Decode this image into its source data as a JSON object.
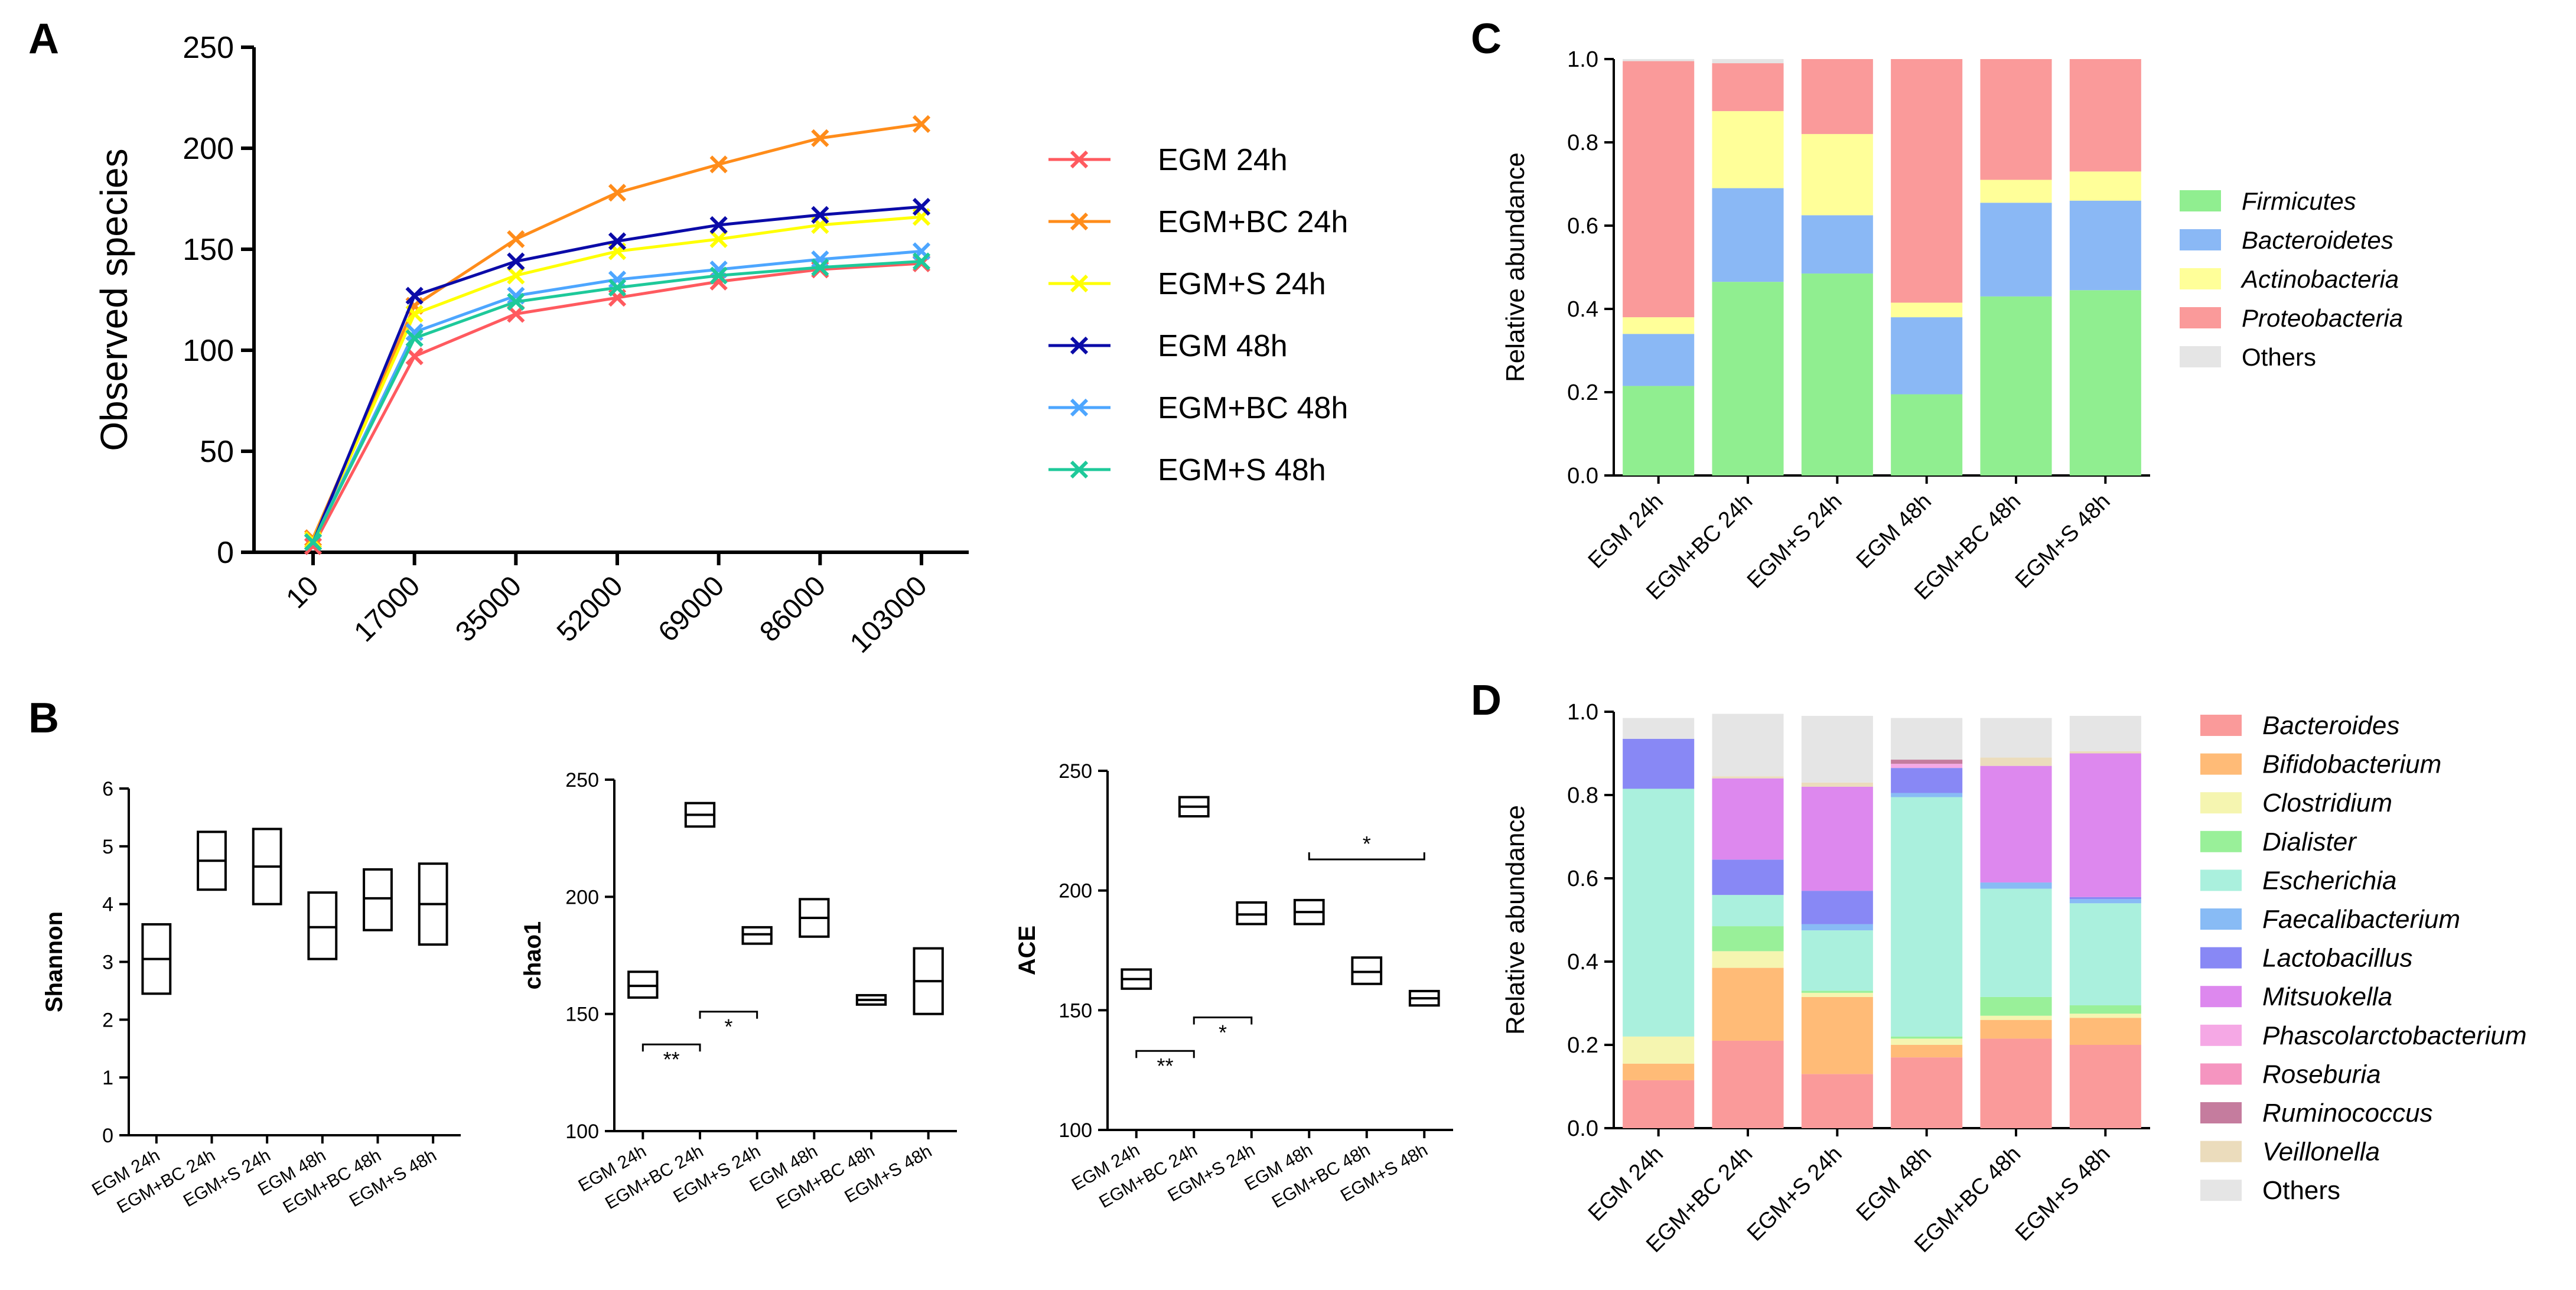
{
  "panel_labels": {
    "a": "A",
    "b": "B",
    "c": "C",
    "d": "D"
  },
  "colors": {
    "EGM 24h": "#ff5a5f",
    "EGM+BC 24h": "#ff8c1a",
    "EGM+S 24h": "#ffff00",
    "EGM 48h": "#0b0ba8",
    "EGM+BC 48h": "#4da6ff",
    "EGM+S 48h": "#1ec99a"
  },
  "chart_data": [
    {
      "id": "A",
      "type": "line",
      "title": "",
      "xlabel": "",
      "ylabel": "Observed species",
      "ylim": [
        0,
        250
      ],
      "yticks": [
        "0",
        "50",
        "100",
        "150",
        "200",
        "250"
      ],
      "categories": [
        "10",
        "17000",
        "35000",
        "52000",
        "69000",
        "86000",
        "103000"
      ],
      "series": [
        {
          "name": "EGM 24h",
          "values": [
            3,
            97,
            118,
            126,
            134,
            140,
            143
          ]
        },
        {
          "name": "EGM+BC 24h",
          "values": [
            7,
            122,
            155,
            178,
            192,
            205,
            212
          ]
        },
        {
          "name": "EGM+S 24h",
          "values": [
            6,
            118,
            137,
            149,
            155,
            162,
            166
          ]
        },
        {
          "name": "EGM 48h",
          "values": [
            5,
            127,
            144,
            154,
            162,
            167,
            171
          ]
        },
        {
          "name": "EGM+BC 48h",
          "values": [
            5,
            109,
            127,
            135,
            140,
            145,
            149
          ]
        },
        {
          "name": "EGM+S 48h",
          "values": [
            5,
            106,
            124,
            131,
            137,
            141,
            144
          ]
        }
      ],
      "legend": [
        "EGM 24h",
        "EGM+BC 24h",
        "EGM+S 24h",
        "EGM 48h",
        "EGM+BC 48h",
        "EGM+S 48h"
      ]
    },
    {
      "id": "B1",
      "type": "box",
      "ylabel": "Shannon",
      "ylim": [
        0,
        6
      ],
      "yticks": [
        "0",
        "1",
        "2",
        "3",
        "4",
        "5",
        "6"
      ],
      "categories": [
        "EGM 24h",
        "EGM+BC 24h",
        "EGM+S 24h",
        "EGM 48h",
        "EGM+BC 48h",
        "EGM+S 48h"
      ],
      "boxes": [
        [
          2.45,
          3.05,
          3.65
        ],
        [
          4.25,
          4.75,
          5.25
        ],
        [
          4.0,
          4.65,
          5.3
        ],
        [
          3.05,
          3.6,
          4.2
        ],
        [
          3.55,
          4.1,
          4.6
        ],
        [
          3.3,
          4.0,
          4.7
        ]
      ],
      "significance": []
    },
    {
      "id": "B2",
      "type": "box",
      "ylabel": "chao1",
      "ylim": [
        100,
        250
      ],
      "yticks": [
        "100",
        "150",
        "200",
        "250"
      ],
      "categories": [
        "EGM 24h",
        "EGM+BC 24h",
        "EGM+S 24h",
        "EGM 48h",
        "EGM+BC 48h",
        "EGM+S 48h"
      ],
      "boxes": [
        [
          157,
          162,
          168
        ],
        [
          230,
          235,
          240
        ],
        [
          180,
          184,
          187
        ],
        [
          183,
          191,
          199
        ],
        [
          154,
          156,
          158
        ],
        [
          150,
          164,
          178
        ]
      ],
      "significance": [
        {
          "from": 0,
          "to": 1,
          "y": 137,
          "label": "**",
          "dir": "down"
        },
        {
          "from": 1,
          "to": 2,
          "y": 151,
          "label": "*",
          "dir": "down"
        }
      ]
    },
    {
      "id": "B3",
      "type": "box",
      "ylabel": "ACE",
      "ylim": [
        100,
        250
      ],
      "yticks": [
        "100",
        "150",
        "200",
        "250"
      ],
      "categories": [
        "EGM 24h",
        "EGM+BC 24h",
        "EGM+S 24h",
        "EGM 48h",
        "EGM+BC 48h",
        "EGM+S 48h"
      ],
      "boxes": [
        [
          159,
          163,
          167
        ],
        [
          231,
          235,
          239
        ],
        [
          186,
          190,
          195
        ],
        [
          186,
          191,
          196
        ],
        [
          161,
          166,
          172
        ],
        [
          152,
          155,
          158
        ]
      ],
      "significance": [
        {
          "from": 0,
          "to": 1,
          "y": 133,
          "label": "**",
          "dir": "down"
        },
        {
          "from": 1,
          "to": 2,
          "y": 147,
          "label": "*",
          "dir": "down"
        },
        {
          "from": 3,
          "to": 5,
          "y": 213,
          "label": "*",
          "dir": "up"
        }
      ]
    },
    {
      "id": "C",
      "type": "stacked_bar",
      "ylabel": "Relative abundance",
      "ylim": [
        0,
        1
      ],
      "yticks": [
        "0.0",
        "0.2",
        "0.4",
        "0.6",
        "0.8",
        "1.0"
      ],
      "categories": [
        "EGM 24h",
        "EGM+BC 24h",
        "EGM+S 24h",
        "EGM 48h",
        "EGM+BC 48h",
        "EGM+S 48h"
      ],
      "series": [
        {
          "name": "Firmicutes",
          "italic": true,
          "color": "#90ee90",
          "values": [
            0.215,
            0.465,
            0.485,
            0.195,
            0.43,
            0.445
          ]
        },
        {
          "name": "Bacteroidetes",
          "italic": true,
          "color": "#8ab8f5",
          "values": [
            0.125,
            0.225,
            0.14,
            0.185,
            0.225,
            0.215
          ]
        },
        {
          "name": "Actinobacteria",
          "italic": true,
          "color": "#ffff99",
          "values": [
            0.04,
            0.185,
            0.195,
            0.035,
            0.055,
            0.07
          ]
        },
        {
          "name": "Proteobacteria",
          "italic": true,
          "color": "#fa9a9a",
          "values": [
            0.615,
            0.115,
            0.18,
            0.585,
            0.29,
            0.27
          ]
        },
        {
          "name": "Others",
          "italic": false,
          "color": "#e5e5e5",
          "values": [
            0.005,
            0.01,
            0.0,
            0.0,
            0.0,
            0.0
          ]
        }
      ]
    },
    {
      "id": "D",
      "type": "stacked_bar",
      "ylabel": "Relative abundance",
      "ylim": [
        0,
        1
      ],
      "yticks": [
        "0.0",
        "0.2",
        "0.4",
        "0.6",
        "0.8",
        "1.0"
      ],
      "categories": [
        "EGM 24h",
        "EGM+BC 24h",
        "EGM+S 24h",
        "EGM 48h",
        "EGM+BC 48h",
        "EGM+S 48h"
      ],
      "series": [
        {
          "name": "Bacteroides",
          "italic": true,
          "color": "#fa9a9a",
          "values": [
            0.115,
            0.21,
            0.13,
            0.17,
            0.215,
            0.2
          ]
        },
        {
          "name": "Bifidobacterium",
          "italic": true,
          "color": "#ffbb77",
          "values": [
            0.04,
            0.175,
            0.185,
            0.03,
            0.045,
            0.065
          ]
        },
        {
          "name": "Clostridium",
          "italic": true,
          "color": "#f5f5b0",
          "values": [
            0.065,
            0.04,
            0.01,
            0.015,
            0.01,
            0.01
          ]
        },
        {
          "name": "Dialister",
          "italic": true,
          "color": "#99f099",
          "values": [
            0.0,
            0.06,
            0.005,
            0.005,
            0.045,
            0.02
          ]
        },
        {
          "name": "Escherichia",
          "italic": true,
          "color": "#aaf0dd",
          "values": [
            0.595,
            0.075,
            0.145,
            0.575,
            0.26,
            0.245
          ]
        },
        {
          "name": "Faecalibacterium",
          "italic": true,
          "color": "#88bbf5",
          "values": [
            0.0,
            0.0,
            0.015,
            0.01,
            0.015,
            0.01
          ]
        },
        {
          "name": "Lactobacillus",
          "italic": true,
          "color": "#8888f5",
          "values": [
            0.12,
            0.085,
            0.08,
            0.06,
            0.0,
            0.005
          ]
        },
        {
          "name": "Mitsuokella",
          "italic": true,
          "color": "#dd88ee",
          "values": [
            0.0,
            0.195,
            0.25,
            0.0,
            0.28,
            0.345
          ]
        },
        {
          "name": "Phascolarctobacterium",
          "italic": true,
          "color": "#f5a8e5",
          "values": [
            0.0,
            0.0,
            0.0,
            0.01,
            0.0,
            0.0
          ]
        },
        {
          "name": "Roseburia",
          "italic": true,
          "color": "#f595c0",
          "values": [
            0.0,
            0.0,
            0.0,
            0.0,
            0.0,
            0.0
          ]
        },
        {
          "name": "Ruminococcus",
          "italic": true,
          "color": "#c57c9e",
          "values": [
            0.0,
            0.0,
            0.0,
            0.01,
            0.0,
            0.0
          ]
        },
        {
          "name": "Veillonella",
          "italic": true,
          "color": "#ebdcbc",
          "values": [
            0.0,
            0.005,
            0.01,
            0.0,
            0.02,
            0.005
          ]
        },
        {
          "name": "Others",
          "italic": false,
          "color": "#e5e5e5",
          "values": [
            0.05,
            0.15,
            0.16,
            0.1,
            0.095,
            0.085
          ]
        }
      ]
    }
  ]
}
